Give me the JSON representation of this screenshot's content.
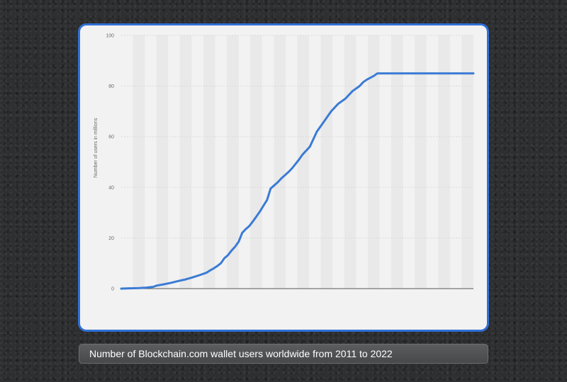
{
  "caption": "Number of Blockchain.com wallet users worldwide from 2011 to 2022",
  "chart_data": {
    "type": "line",
    "title": "",
    "xlabel": "",
    "ylabel": "Number of users in millions",
    "ylim": [
      0,
      100
    ],
    "yticks": [
      0,
      20,
      40,
      60,
      80,
      100
    ],
    "grid": true,
    "legend": "none",
    "colors": {
      "line": "#3a7bd5",
      "frame": "#2f6fd6",
      "grid": "#d9d9d9",
      "band": "#e9e9e9",
      "baseline": "#555555"
    },
    "series": [
      {
        "x": [
          0,
          2,
          5,
          7,
          9,
          10,
          12,
          14,
          16,
          18,
          20,
          22,
          24,
          25,
          26,
          27,
          28,
          29,
          30,
          31,
          32,
          33,
          34,
          35,
          36,
          37,
          38,
          39,
          40,
          41,
          42,
          44,
          45,
          47,
          48,
          50,
          51,
          53,
          55,
          57,
          59,
          61,
          63,
          65,
          67,
          68,
          69,
          71,
          72,
          74,
          75,
          77,
          79,
          81,
          83,
          84,
          85,
          86,
          87,
          88,
          89,
          90,
          91,
          92,
          93,
          94,
          95,
          96,
          97,
          98,
          99
        ],
        "values": [
          0,
          0.1,
          0.2,
          0.4,
          0.7,
          1.2,
          1.7,
          2.3,
          3,
          3.6,
          4.4,
          5.3,
          6.3,
          7.2,
          8,
          8.9,
          10,
          12,
          13.2,
          15,
          16.5,
          18.5,
          22,
          23.5,
          24.7,
          26.5,
          28.5,
          30.5,
          32.8,
          35,
          39.5,
          42,
          43.5,
          46,
          47.5,
          51,
          53,
          56,
          62,
          66,
          70,
          73,
          75,
          78,
          80,
          81.5,
          82.5,
          84,
          85,
          85,
          85,
          85,
          85,
          85,
          85,
          85,
          85,
          85,
          85,
          85,
          85,
          85,
          85,
          85,
          85,
          85,
          85,
          85,
          85,
          85,
          85
        ]
      }
    ]
  }
}
